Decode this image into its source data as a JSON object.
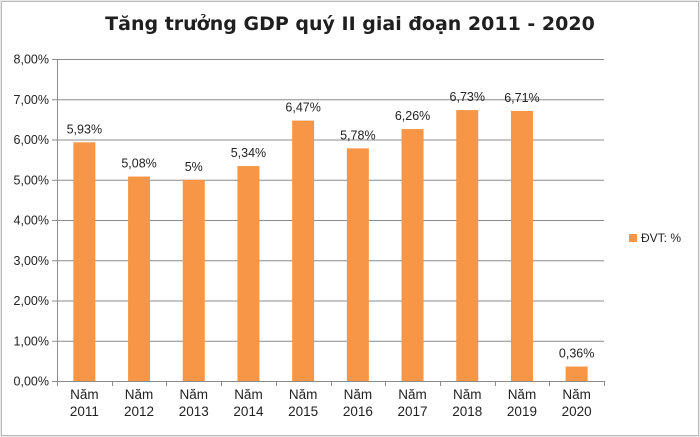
{
  "chart_data": {
    "type": "bar",
    "title": "Tăng trưởng GDP quý II giai đoạn 2011 - 2020",
    "categories": [
      [
        "Năm",
        "2011"
      ],
      [
        "Năm",
        "2012"
      ],
      [
        "Năm",
        "2013"
      ],
      [
        "Năm",
        "2014"
      ],
      [
        "Năm",
        "2015"
      ],
      [
        "Năm",
        "2016"
      ],
      [
        "Năm",
        "2017"
      ],
      [
        "Năm",
        "2018"
      ],
      [
        "Năm",
        "2019"
      ],
      [
        "Năm",
        "2020"
      ]
    ],
    "series": [
      {
        "name": "ĐVT: %",
        "values": [
          5.93,
          5.08,
          5.0,
          5.34,
          6.47,
          5.78,
          6.26,
          6.73,
          6.71,
          0.36
        ],
        "data_labels": [
          "5,93%",
          "5,08%",
          "5%",
          "5,34%",
          "6,47%",
          "5,78%",
          "6,26%",
          "6,73%",
          "6,71%",
          "0,36%"
        ],
        "color": "#f79646"
      }
    ],
    "ylim": [
      0,
      8
    ],
    "yticks": [
      0,
      1,
      2,
      3,
      4,
      5,
      6,
      7,
      8
    ],
    "ytick_labels": [
      "0,00%",
      "1,00%",
      "2,00%",
      "3,00%",
      "4,00%",
      "5,00%",
      "6,00%",
      "7,00%",
      "8,00%"
    ],
    "grid": true,
    "legend": "right",
    "xlabel": "",
    "ylabel": ""
  }
}
